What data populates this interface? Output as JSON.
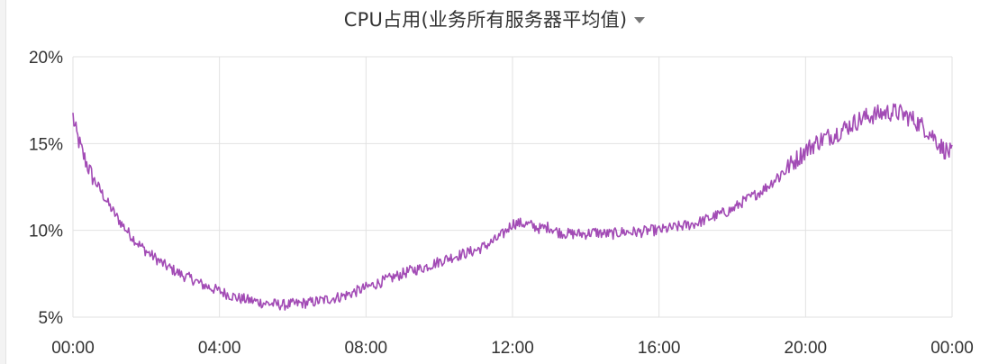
{
  "panel": {
    "title": "CPU占用(业务所有服务器平均值)",
    "dropdown_icon": "caret-down-icon"
  },
  "chart_data": {
    "type": "line",
    "title": "CPU占用(业务所有服务器平均值)",
    "xlabel": "",
    "ylabel": "",
    "x_ticks": [
      "00:00",
      "04:00",
      "08:00",
      "12:00",
      "16:00",
      "20:00",
      "00:00"
    ],
    "y_ticks": [
      "5%",
      "10%",
      "15%",
      "20%"
    ],
    "xlim_hours": [
      0,
      24
    ],
    "ylim": [
      5,
      20
    ],
    "grid": true,
    "legend": "none",
    "series": [
      {
        "color": "#a24bb5",
        "x_hours": [
          0,
          0.05,
          0.25,
          0.5,
          0.75,
          1,
          1.25,
          1.5,
          1.75,
          2,
          2.25,
          2.5,
          2.75,
          3,
          3.25,
          3.5,
          3.75,
          4,
          4.25,
          4.5,
          4.75,
          5,
          5.25,
          5.5,
          5.75,
          6,
          6.25,
          6.5,
          6.75,
          7,
          7.25,
          7.5,
          7.75,
          8,
          8.25,
          8.5,
          8.75,
          9,
          9.25,
          9.5,
          9.75,
          10,
          10.25,
          10.5,
          10.75,
          11,
          11.25,
          11.5,
          11.75,
          12,
          12.25,
          12.5,
          12.75,
          13,
          13.25,
          13.5,
          13.75,
          14,
          14.25,
          14.5,
          14.75,
          15,
          15.25,
          15.5,
          15.75,
          16,
          16.25,
          16.5,
          16.75,
          17,
          17.25,
          17.5,
          17.75,
          18,
          18.25,
          18.5,
          18.75,
          19,
          19.25,
          19.5,
          19.75,
          20,
          20.25,
          20.5,
          20.75,
          21,
          21.25,
          21.5,
          21.75,
          22,
          22.25,
          22.5,
          22.75,
          23,
          23.25,
          23.5,
          23.75,
          24
        ],
        "values": [
          16.6,
          15.9,
          14.5,
          13.2,
          12.3,
          11.4,
          10.6,
          9.9,
          9.3,
          8.8,
          8.4,
          8.0,
          7.7,
          7.4,
          7.2,
          6.9,
          6.7,
          6.5,
          6.3,
          6.1,
          6.0,
          5.9,
          5.8,
          5.75,
          5.7,
          5.75,
          5.8,
          5.85,
          5.95,
          6.05,
          6.15,
          6.3,
          6.5,
          6.7,
          6.9,
          7.1,
          7.3,
          7.5,
          7.7,
          7.8,
          8.0,
          8.2,
          8.4,
          8.55,
          8.7,
          8.85,
          9.1,
          9.4,
          9.8,
          10.4,
          10.4,
          10.3,
          10.1,
          10.2,
          9.9,
          9.8,
          9.8,
          9.8,
          9.9,
          9.8,
          9.8,
          9.9,
          9.9,
          9.9,
          10.0,
          10.0,
          10.1,
          10.2,
          10.3,
          10.4,
          10.6,
          10.8,
          11.0,
          11.2,
          11.6,
          11.9,
          12.2,
          12.6,
          13.1,
          13.6,
          14.1,
          14.6,
          15.0,
          15.3,
          15.5,
          15.8,
          16.1,
          16.4,
          16.6,
          16.7,
          16.8,
          16.8,
          16.6,
          16.3,
          15.9,
          15.4,
          14.7,
          14.4
        ]
      }
    ]
  }
}
